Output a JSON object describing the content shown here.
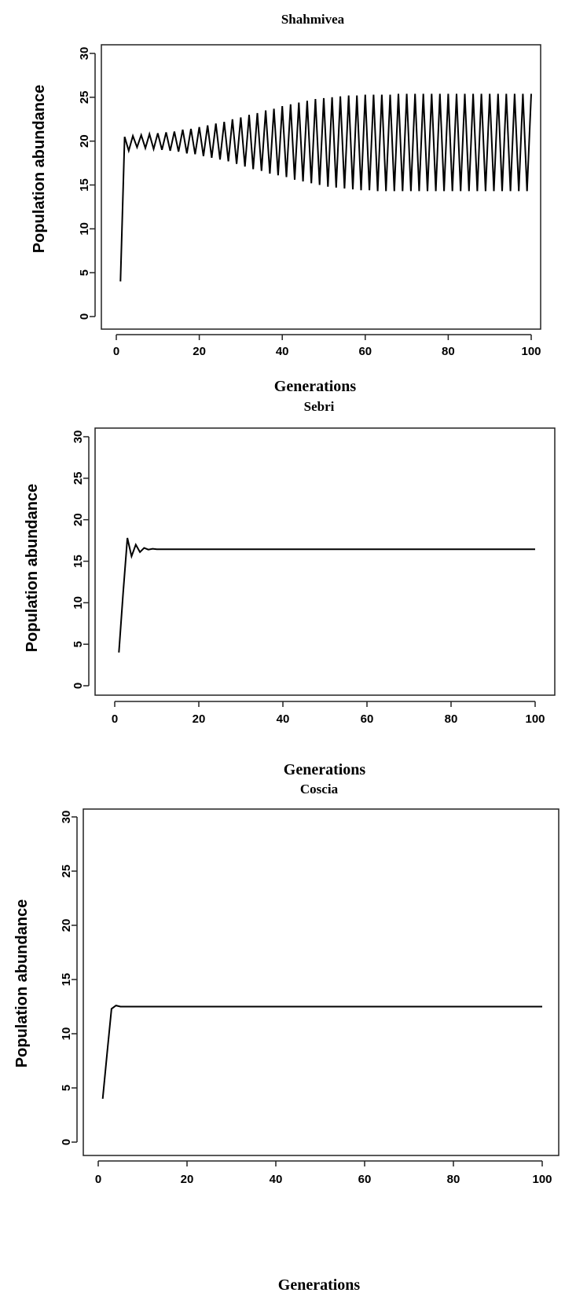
{
  "chart_data": [
    {
      "type": "line",
      "title": "Shahmivea",
      "xlabel": "Generations",
      "ylabel": "Population abundance",
      "xlim": [
        0,
        100
      ],
      "ylim": [
        0,
        30
      ],
      "x_ticks": [
        "0",
        "20",
        "40",
        "60",
        "80",
        "100"
      ],
      "y_ticks": [
        "0",
        "5",
        "10",
        "15",
        "20",
        "25",
        "30"
      ],
      "series": [
        {
          "x": [
            1,
            2,
            3,
            4,
            5,
            6,
            7,
            8,
            9,
            10,
            11,
            12,
            13,
            14,
            15,
            16,
            17,
            18,
            19,
            20,
            21,
            22,
            23,
            24,
            25,
            26,
            27,
            28,
            29,
            30,
            31,
            32,
            33,
            34,
            35,
            36,
            37,
            38,
            39,
            40,
            41,
            42,
            43,
            44,
            45,
            46,
            47,
            48,
            49,
            50,
            51,
            52,
            53,
            54,
            55,
            56,
            57,
            58,
            59,
            60,
            61,
            62,
            63,
            64,
            65,
            66,
            67,
            68,
            69,
            70,
            71,
            72,
            73,
            74,
            75,
            76,
            77,
            78,
            79,
            80,
            81,
            82,
            83,
            84,
            85,
            86,
            87,
            88,
            89,
            90,
            91,
            92,
            93,
            94,
            95,
            96,
            97,
            98,
            99,
            100
          ],
          "y": [
            4,
            20.5,
            18.9,
            20.6,
            19.3,
            20.7,
            19.2,
            20.8,
            19.1,
            20.9,
            19.0,
            21.0,
            18.9,
            21.1,
            18.8,
            21.3,
            18.6,
            21.4,
            18.5,
            21.6,
            18.3,
            21.8,
            18.1,
            22.0,
            17.9,
            22.2,
            17.7,
            22.5,
            17.4,
            22.7,
            17.1,
            23.0,
            16.8,
            23.2,
            16.6,
            23.5,
            16.3,
            23.7,
            16.1,
            24.0,
            15.9,
            24.2,
            15.6,
            24.4,
            15.4,
            24.6,
            15.2,
            24.8,
            15.0,
            24.9,
            14.8,
            25.0,
            14.7,
            25.1,
            14.6,
            25.2,
            14.5,
            25.2,
            14.4,
            25.3,
            14.4,
            25.3,
            14.3,
            25.3,
            14.3,
            25.3,
            14.3,
            25.4,
            14.3,
            25.4,
            14.3,
            25.4,
            14.3,
            25.4,
            14.3,
            25.4,
            14.3,
            25.4,
            14.3,
            25.4,
            14.3,
            25.4,
            14.3,
            25.4,
            14.3,
            25.4,
            14.3,
            25.4,
            14.3,
            25.4,
            14.3,
            25.4,
            14.3,
            25.4,
            14.3,
            25.4,
            14.3,
            25.4,
            14.3,
            25.4
          ]
        }
      ]
    },
    {
      "type": "line",
      "title": "Sebri",
      "xlabel": "Generations",
      "ylabel": "Population abundance",
      "xlim": [
        0,
        100
      ],
      "ylim": [
        0,
        30
      ],
      "x_ticks": [
        "0",
        "20",
        "40",
        "60",
        "80",
        "100"
      ],
      "y_ticks": [
        "0",
        "5",
        "10",
        "15",
        "20",
        "25",
        "30"
      ],
      "series": [
        {
          "x": [
            1,
            2,
            3,
            4,
            5,
            6,
            7,
            8,
            9,
            10,
            20,
            40,
            60,
            80,
            100
          ],
          "y": [
            4,
            11.2,
            17.8,
            15.6,
            17.0,
            16.1,
            16.6,
            16.4,
            16.5,
            16.45,
            16.45,
            16.45,
            16.45,
            16.45,
            16.45
          ]
        }
      ]
    },
    {
      "type": "line",
      "title": "Coscia",
      "xlabel": "Generations",
      "ylabel": "Population abundance",
      "xlim": [
        0,
        100
      ],
      "ylim": [
        0,
        30
      ],
      "x_ticks": [
        "0",
        "20",
        "40",
        "60",
        "80",
        "100"
      ],
      "y_ticks": [
        "0",
        "5",
        "10",
        "15",
        "20",
        "25",
        "30"
      ],
      "series": [
        {
          "x": [
            1,
            2,
            3,
            4,
            5,
            10,
            20,
            40,
            60,
            80,
            100
          ],
          "y": [
            4,
            8.2,
            12.3,
            12.6,
            12.5,
            12.5,
            12.5,
            12.5,
            12.5,
            12.5,
            12.5
          ]
        }
      ]
    }
  ]
}
